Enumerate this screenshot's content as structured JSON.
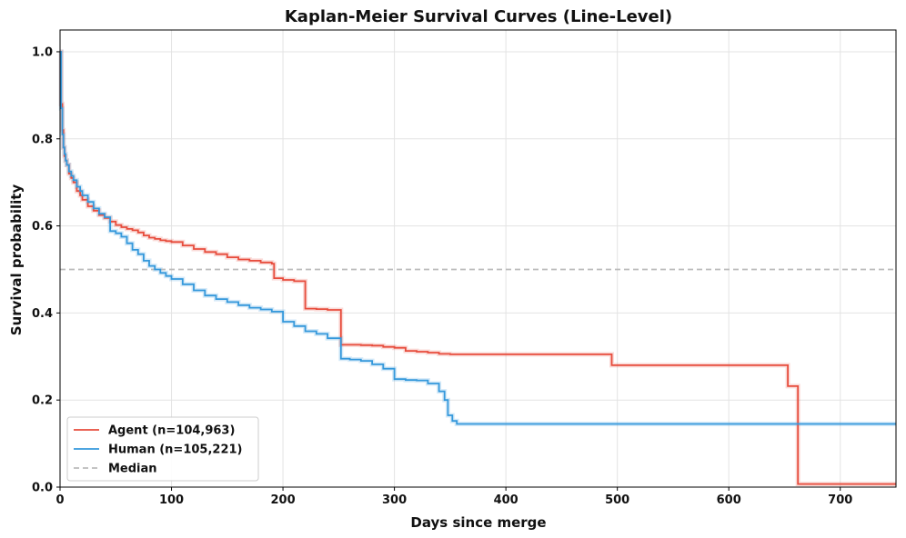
{
  "chart_data": {
    "type": "line",
    "title": "Kaplan-Meier Survival Curves (Line-Level)",
    "xlabel": "Days since merge",
    "ylabel": "Survival probability",
    "xlim": [
      0,
      750
    ],
    "ylim": [
      0,
      1.05
    ],
    "xticks": [
      0,
      100,
      200,
      300,
      400,
      500,
      600,
      700
    ],
    "yticks": [
      0.0,
      0.2,
      0.4,
      0.6,
      0.8,
      1.0
    ],
    "xtick_labels": [
      "0",
      "100",
      "200",
      "300",
      "400",
      "500",
      "600",
      "700"
    ],
    "ytick_labels": [
      "0.0",
      "0.2",
      "0.4",
      "0.6",
      "0.8",
      "1.0"
    ],
    "grid": true,
    "legend_position": "bottom-left",
    "median_line": {
      "y": 0.5,
      "label": "Median",
      "color": "#bbbbbb",
      "style": "dashed"
    },
    "series": [
      {
        "name": "Agent (n=104,963)",
        "color": "#e74c3c",
        "step": true,
        "x": [
          0,
          1,
          2,
          3,
          4,
          5,
          6,
          8,
          10,
          12,
          15,
          18,
          20,
          25,
          30,
          35,
          40,
          45,
          50,
          55,
          60,
          65,
          70,
          75,
          80,
          85,
          90,
          95,
          100,
          110,
          120,
          130,
          140,
          150,
          160,
          170,
          180,
          190,
          192,
          200,
          210,
          220,
          230,
          240,
          252,
          260,
          270,
          280,
          290,
          300,
          310,
          320,
          330,
          340,
          350,
          400,
          450,
          495,
          500,
          550,
          600,
          653,
          660,
          662,
          700,
          750
        ],
        "y": [
          1.0,
          0.88,
          0.82,
          0.78,
          0.76,
          0.75,
          0.74,
          0.72,
          0.71,
          0.7,
          0.68,
          0.67,
          0.66,
          0.645,
          0.635,
          0.625,
          0.618,
          0.61,
          0.602,
          0.597,
          0.593,
          0.59,
          0.585,
          0.578,
          0.573,
          0.57,
          0.567,
          0.565,
          0.563,
          0.555,
          0.547,
          0.54,
          0.535,
          0.528,
          0.523,
          0.52,
          0.516,
          0.513,
          0.48,
          0.476,
          0.473,
          0.41,
          0.409,
          0.407,
          0.327,
          0.327,
          0.326,
          0.325,
          0.322,
          0.32,
          0.313,
          0.311,
          0.309,
          0.306,
          0.305,
          0.305,
          0.305,
          0.28,
          0.28,
          0.28,
          0.28,
          0.232,
          0.232,
          0.007,
          0.007,
          0.007
        ]
      },
      {
        "name": "Human (n=105,221)",
        "color": "#3498db",
        "step": true,
        "x": [
          0,
          1,
          2,
          3,
          4,
          5,
          6,
          8,
          10,
          12,
          15,
          18,
          20,
          25,
          30,
          35,
          40,
          45,
          50,
          55,
          60,
          65,
          70,
          75,
          80,
          85,
          90,
          95,
          100,
          110,
          120,
          130,
          140,
          150,
          160,
          170,
          180,
          190,
          200,
          210,
          220,
          230,
          240,
          252,
          260,
          270,
          280,
          290,
          300,
          310,
          320,
          330,
          340,
          345,
          348,
          352,
          356,
          400,
          450,
          500,
          550,
          600,
          650,
          700,
          750
        ],
        "y": [
          1.0,
          0.87,
          0.81,
          0.78,
          0.765,
          0.75,
          0.74,
          0.725,
          0.715,
          0.705,
          0.69,
          0.68,
          0.67,
          0.655,
          0.64,
          0.628,
          0.62,
          0.588,
          0.583,
          0.575,
          0.56,
          0.545,
          0.535,
          0.52,
          0.508,
          0.5,
          0.492,
          0.485,
          0.478,
          0.466,
          0.452,
          0.44,
          0.432,
          0.425,
          0.418,
          0.412,
          0.408,
          0.403,
          0.38,
          0.37,
          0.358,
          0.352,
          0.342,
          0.295,
          0.293,
          0.29,
          0.282,
          0.272,
          0.248,
          0.246,
          0.245,
          0.238,
          0.22,
          0.2,
          0.165,
          0.152,
          0.145,
          0.145,
          0.145,
          0.145,
          0.145,
          0.145,
          0.145,
          0.145,
          0.145
        ]
      }
    ]
  }
}
